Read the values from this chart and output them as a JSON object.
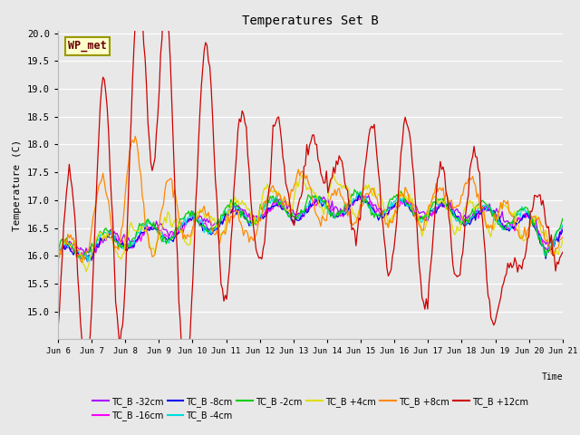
{
  "title": "Temperatures Set B",
  "xlabel": "Time",
  "ylabel": "Temperature (C)",
  "ylim": [
    14.5,
    20.05
  ],
  "yticks": [
    15.0,
    15.5,
    16.0,
    16.5,
    17.0,
    17.5,
    18.0,
    18.5,
    19.0,
    19.5,
    20.0
  ],
  "x_labels": [
    "Jun 6",
    "Jun 7",
    "Jun 8",
    "Jun 9",
    "Jun 10",
    "Jun 11",
    "Jun 12",
    "Jun 13",
    "Jun 14",
    "Jun 15",
    "Jun 16",
    "Jun 17",
    "Jun 18",
    "Jun 19",
    "Jun 20",
    "Jun 21"
  ],
  "annotation_text": "WP_met",
  "background_color": "#e8e8e8",
  "fig_facecolor": "#e8e8e8",
  "series": [
    {
      "label": "TC_B -32cm",
      "color": "#aa00ff"
    },
    {
      "label": "TC_B -16cm",
      "color": "#ff00ff"
    },
    {
      "label": "TC_B -8cm",
      "color": "#0000ee"
    },
    {
      "label": "TC_B -4cm",
      "color": "#00dddd"
    },
    {
      "label": "TC_B -2cm",
      "color": "#00cc00"
    },
    {
      "label": "TC_B +4cm",
      "color": "#dddd00"
    },
    {
      "label": "TC_B +8cm",
      "color": "#ff8800"
    },
    {
      "label": "TC_B +12cm",
      "color": "#cc0000"
    }
  ]
}
